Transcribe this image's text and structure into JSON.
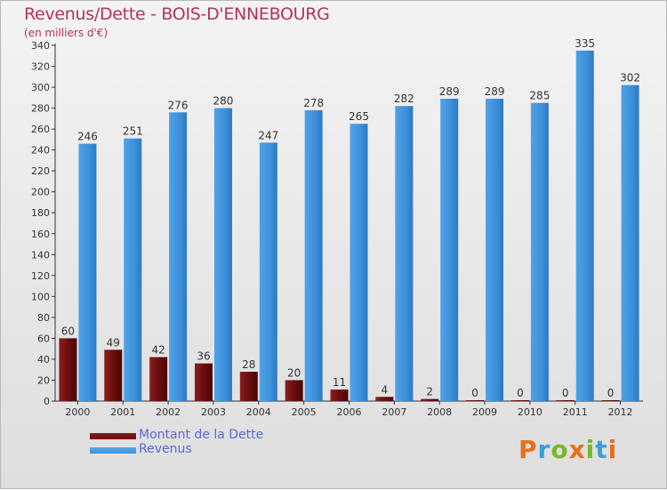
{
  "header": {
    "title": "Revenus/Dette - BOIS-D'ENNEBOURG",
    "subtitle": "(en milliers d'€)"
  },
  "legend": {
    "items": [
      {
        "label": "Montant de la Dette",
        "color": "#6b0d0d"
      },
      {
        "label": "Revenus",
        "color": "#3d90da"
      }
    ]
  },
  "logo": {
    "text": "Proxiti",
    "colors": [
      "#e8701a",
      "#3ca0d8",
      "#79b729",
      "#e8701a",
      "#79b729",
      "#3ca0d8",
      "#e8701a"
    ]
  },
  "chart_data": {
    "type": "bar",
    "categories": [
      "2000",
      "2001",
      "2002",
      "2003",
      "2004",
      "2005",
      "2006",
      "2007",
      "2008",
      "2009",
      "2010",
      "2011",
      "2012"
    ],
    "series": [
      {
        "name": "Montant de la Dette",
        "values": [
          60,
          49,
          42,
          36,
          28,
          20,
          11,
          4,
          2,
          0,
          0,
          0,
          0
        ],
        "color": "#6b0d0d"
      },
      {
        "name": "Revenus",
        "values": [
          246,
          251,
          276,
          280,
          247,
          278,
          265,
          282,
          289,
          289,
          285,
          335,
          302
        ],
        "color": "#3d90da"
      }
    ],
    "ylim": [
      0,
      340
    ],
    "ytick_step": 20,
    "grid": false,
    "title": "Revenus/Dette - BOIS-D'ENNEBOURG",
    "ylabel": "(en milliers d'€)",
    "legend_position": "bottom-left"
  }
}
